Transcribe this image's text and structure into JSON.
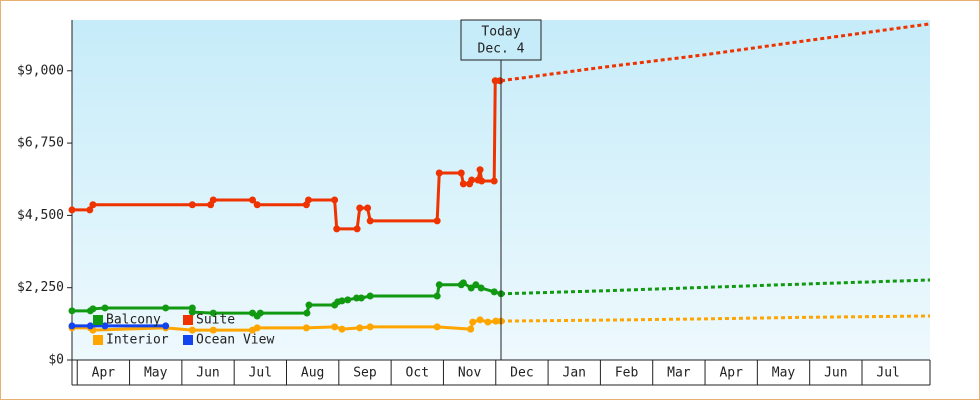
{
  "chart_data": {
    "type": "line",
    "legend": "lower left",
    "annotation": {
      "lines": [
        "Today",
        "Dec. 4"
      ],
      "x": 8.1
    },
    "xlim": [
      -0.1,
      16.3
    ],
    "xticks": [
      {
        "value": 0.5,
        "label": "Apr"
      },
      {
        "value": 1.5,
        "label": "May"
      },
      {
        "value": 2.5,
        "label": "Jun"
      },
      {
        "value": 3.5,
        "label": "Jul"
      },
      {
        "value": 4.5,
        "label": "Aug"
      },
      {
        "value": 5.5,
        "label": "Sep"
      },
      {
        "value": 6.5,
        "label": "Oct"
      },
      {
        "value": 7.5,
        "label": "Nov"
      },
      {
        "value": 8.5,
        "label": "Dec"
      },
      {
        "value": 9.5,
        "label": "Jan"
      },
      {
        "value": 10.5,
        "label": "Feb"
      },
      {
        "value": 11.5,
        "label": "Mar"
      },
      {
        "value": 12.5,
        "label": "Apr"
      },
      {
        "value": 13.5,
        "label": "May"
      },
      {
        "value": 14.5,
        "label": "Jun"
      },
      {
        "value": 15.5,
        "label": "Jul"
      }
    ],
    "ylim": [
      0,
      10580
    ],
    "yticks": [
      {
        "value": 0,
        "label": "$0"
      },
      {
        "value": 2250,
        "label": "$2,250"
      },
      {
        "value": 4500,
        "label": "$4,500"
      },
      {
        "value": 6750,
        "label": "$6,750"
      },
      {
        "value": 9000,
        "label": "$9,000"
      }
    ],
    "series": [
      {
        "name": "Balcony",
        "color": "#119911",
        "x": [
          -0.1,
          0.25,
          0.3,
          0.53,
          1.69,
          2.2,
          2.2,
          2.6,
          3.35,
          3.44,
          3.5,
          4.39,
          4.43,
          4.92,
          4.98,
          5.06,
          5.17,
          5.34,
          5.43,
          5.6,
          6.88,
          6.92,
          7.34,
          7.38,
          7.53,
          7.62,
          7.72,
          7.97,
          8.1
        ],
        "values": [
          1530,
          1530,
          1590,
          1620,
          1620,
          1620,
          1490,
          1460,
          1460,
          1370,
          1460,
          1460,
          1710,
          1710,
          1810,
          1840,
          1870,
          1930,
          1930,
          1990,
          1990,
          2340,
          2340,
          2400,
          2240,
          2340,
          2240,
          2120,
          2060
        ],
        "forecast_x": [
          8.1,
          10,
          12,
          14,
          16.3
        ],
        "forecast_values": [
          2060,
          2150,
          2260,
          2370,
          2490
        ]
      },
      {
        "name": "Suite",
        "color": "#ee3300",
        "x": [
          -0.1,
          0.24,
          0.3,
          2.2,
          2.55,
          2.6,
          3.35,
          3.44,
          4.38,
          4.42,
          4.92,
          4.96,
          5.35,
          5.4,
          5.55,
          5.6,
          6.88,
          6.92,
          7.34,
          7.38,
          7.5,
          7.54,
          7.66,
          7.7,
          7.73,
          7.97,
          7.99,
          8.08
        ],
        "values": [
          4670,
          4670,
          4830,
          4830,
          4830,
          4980,
          4980,
          4830,
          4830,
          4980,
          4980,
          4080,
          4080,
          4730,
          4730,
          4330,
          4330,
          5820,
          5820,
          5480,
          5480,
          5600,
          5600,
          5920,
          5570,
          5570,
          8690,
          8690
        ],
        "forecast_x": [
          8.1,
          10,
          12,
          14,
          16.3
        ],
        "forecast_values": [
          8690,
          9100,
          9500,
          9950,
          10460
        ]
      },
      {
        "name": "Interior",
        "color": "#ffa500",
        "x": [
          -0.1,
          0.25,
          0.3,
          1.69,
          2.2,
          2.6,
          3.35,
          3.44,
          4.38,
          4.92,
          5.06,
          5.4,
          5.6,
          6.88,
          7.52,
          7.56,
          7.7,
          7.85,
          8.0,
          8.1
        ],
        "values": [
          1000,
          1000,
          930,
          1000,
          930,
          930,
          930,
          1000,
          1000,
          1030,
          960,
          1000,
          1030,
          1030,
          960,
          1180,
          1250,
          1180,
          1210,
          1210
        ],
        "forecast_x": [
          8.1,
          10,
          12,
          14,
          16.3
        ],
        "forecast_values": [
          1210,
          1240,
          1280,
          1330,
          1370
        ]
      },
      {
        "name": "Ocean View",
        "color": "#1144ee",
        "x": [
          -0.1,
          0.25,
          0.53,
          1.69
        ],
        "values": [
          1060,
          1060,
          1060,
          1060
        ]
      }
    ]
  }
}
